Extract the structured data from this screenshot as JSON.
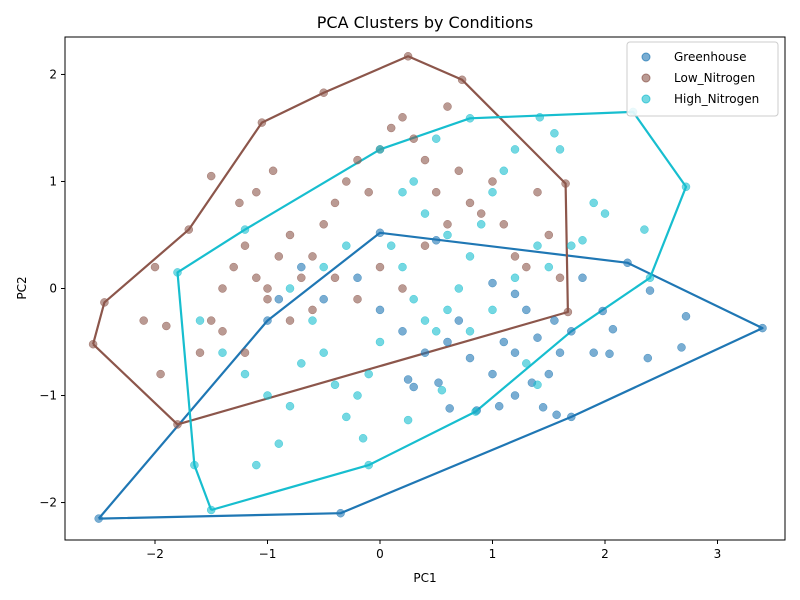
{
  "chart_data": {
    "type": "scatter",
    "title": "PCA Clusters by Conditions",
    "xlabel": "PC1",
    "ylabel": "PC2",
    "xlim": [
      -2.8,
      3.6
    ],
    "ylim": [
      -2.35,
      2.35
    ],
    "xticks": [
      -2,
      -1,
      0,
      1,
      2,
      3
    ],
    "yticks": [
      -2,
      -1,
      0,
      1,
      2
    ],
    "grid": false,
    "legend_position": "top-right",
    "series": [
      {
        "name": "Greenhouse",
        "color": "#1f77b4",
        "hull": [
          [
            -2.5,
            -2.15
          ],
          [
            -0.35,
            -2.1
          ],
          [
            1.7,
            -1.2
          ],
          [
            3.4,
            -0.37
          ],
          [
            2.2,
            0.24
          ],
          [
            0.0,
            0.52
          ],
          [
            -1.0,
            -0.3
          ],
          [
            -2.5,
            -2.15
          ]
        ],
        "points": [
          [
            -2.5,
            -2.15
          ],
          [
            -0.35,
            -2.1
          ],
          [
            3.4,
            -0.37
          ],
          [
            2.72,
            -0.26
          ],
          [
            2.68,
            -0.55
          ],
          [
            2.38,
            -0.65
          ],
          [
            2.4,
            -0.02
          ],
          [
            2.2,
            0.24
          ],
          [
            2.04,
            -0.61
          ],
          [
            1.98,
            -0.21
          ],
          [
            2.07,
            -0.38
          ],
          [
            1.9,
            -0.6
          ],
          [
            1.7,
            -1.2
          ],
          [
            1.57,
            -1.18
          ],
          [
            1.45,
            -1.11
          ],
          [
            1.35,
            -0.88
          ],
          [
            1.2,
            -1.0
          ],
          [
            1.06,
            -1.1
          ],
          [
            0.86,
            -1.14
          ],
          [
            0.62,
            -1.12
          ],
          [
            0.52,
            -0.88
          ],
          [
            0.3,
            -0.92
          ],
          [
            0.25,
            -0.85
          ],
          [
            1.2,
            -0.6
          ],
          [
            1.1,
            -0.5
          ],
          [
            1.4,
            -0.46
          ],
          [
            1.3,
            -0.2
          ],
          [
            1.2,
            -0.05
          ],
          [
            1.0,
            0.05
          ],
          [
            0.7,
            -0.3
          ],
          [
            0.6,
            -0.5
          ],
          [
            0.4,
            -0.6
          ],
          [
            0.2,
            -0.4
          ],
          [
            0.0,
            -0.2
          ],
          [
            -0.2,
            0.1
          ],
          [
            -0.5,
            -0.1
          ],
          [
            -0.7,
            0.2
          ],
          [
            -0.9,
            -0.1
          ],
          [
            -1.0,
            -0.3
          ],
          [
            0.0,
            0.52
          ],
          [
            0.5,
            0.45
          ],
          [
            1.8,
            0.1
          ],
          [
            1.7,
            -0.4
          ],
          [
            1.55,
            -0.3
          ],
          [
            1.0,
            -0.8
          ],
          [
            0.8,
            -0.65
          ],
          [
            1.5,
            -0.8
          ],
          [
            1.6,
            -0.6
          ]
        ]
      },
      {
        "name": "Low_Nitrogen",
        "color": "#8c564b",
        "hull": [
          [
            -2.55,
            -0.52
          ],
          [
            -1.8,
            -1.27
          ],
          [
            1.67,
            -0.22
          ],
          [
            1.65,
            0.98
          ],
          [
            0.73,
            1.95
          ],
          [
            0.25,
            2.17
          ],
          [
            -0.5,
            1.83
          ],
          [
            -1.05,
            1.55
          ],
          [
            -1.7,
            0.55
          ],
          [
            -2.45,
            -0.13
          ],
          [
            -2.55,
            -0.52
          ]
        ],
        "points": [
          [
            -2.55,
            -0.52
          ],
          [
            -2.45,
            -0.13
          ],
          [
            -1.8,
            -1.27
          ],
          [
            -1.7,
            0.55
          ],
          [
            -1.05,
            1.55
          ],
          [
            -0.5,
            1.83
          ],
          [
            0.25,
            2.17
          ],
          [
            0.73,
            1.95
          ],
          [
            1.65,
            0.98
          ],
          [
            1.67,
            -0.22
          ],
          [
            -1.95,
            -0.8
          ],
          [
            -1.9,
            -0.35
          ],
          [
            -2.0,
            0.2
          ],
          [
            -2.1,
            -0.3
          ],
          [
            -1.6,
            -0.6
          ],
          [
            -1.5,
            -0.3
          ],
          [
            -1.4,
            0.0
          ],
          [
            -1.3,
            0.2
          ],
          [
            -1.2,
            0.4
          ],
          [
            -1.1,
            0.1
          ],
          [
            -1.0,
            -0.1
          ],
          [
            -0.9,
            0.3
          ],
          [
            -0.8,
            0.5
          ],
          [
            -0.7,
            0.1
          ],
          [
            -0.6,
            -0.2
          ],
          [
            -0.5,
            0.6
          ],
          [
            -0.4,
            0.8
          ],
          [
            -0.3,
            1.0
          ],
          [
            -0.2,
            1.2
          ],
          [
            -0.1,
            0.9
          ],
          [
            0.0,
            1.3
          ],
          [
            0.1,
            1.5
          ],
          [
            0.2,
            1.6
          ],
          [
            0.3,
            1.4
          ],
          [
            0.4,
            1.2
          ],
          [
            0.5,
            0.9
          ],
          [
            0.6,
            1.7
          ],
          [
            0.7,
            1.1
          ],
          [
            0.8,
            0.8
          ],
          [
            0.9,
            0.7
          ],
          [
            1.0,
            1.0
          ],
          [
            1.1,
            0.6
          ],
          [
            1.2,
            0.3
          ],
          [
            1.3,
            0.2
          ],
          [
            1.4,
            0.9
          ],
          [
            1.5,
            0.5
          ],
          [
            1.6,
            0.1
          ],
          [
            -1.4,
            -0.4
          ],
          [
            -1.2,
            -0.6
          ],
          [
            -1.0,
            0.0
          ],
          [
            -0.8,
            -0.3
          ],
          [
            -0.6,
            0.3
          ],
          [
            -0.4,
            0.1
          ],
          [
            -0.2,
            -0.1
          ],
          [
            0.0,
            0.2
          ],
          [
            0.2,
            0.0
          ],
          [
            0.4,
            0.4
          ],
          [
            0.6,
            0.6
          ],
          [
            -1.5,
            1.05
          ],
          [
            -1.25,
            0.8
          ],
          [
            -1.1,
            0.9
          ],
          [
            -0.95,
            1.1
          ]
        ]
      },
      {
        "name": "High_Nitrogen",
        "color": "#17becf",
        "hull": [
          [
            -1.5,
            -2.07
          ],
          [
            -1.65,
            -1.65
          ],
          [
            -1.8,
            0.15
          ],
          [
            -1.2,
            0.55
          ],
          [
            0.0,
            1.3
          ],
          [
            0.8,
            1.59
          ],
          [
            2.25,
            1.65
          ],
          [
            2.72,
            0.95
          ],
          [
            2.4,
            0.1
          ],
          [
            1.7,
            -0.4
          ],
          [
            0.85,
            -1.15
          ],
          [
            -0.1,
            -1.65
          ],
          [
            -1.5,
            -2.07
          ]
        ],
        "points": [
          [
            -1.5,
            -2.07
          ],
          [
            -1.65,
            -1.65
          ],
          [
            -1.1,
            -1.65
          ],
          [
            -0.1,
            -1.65
          ],
          [
            -1.8,
            0.15
          ],
          [
            -1.2,
            0.55
          ],
          [
            0.0,
            1.3
          ],
          [
            0.8,
            1.59
          ],
          [
            1.42,
            1.6
          ],
          [
            2.25,
            1.65
          ],
          [
            2.72,
            0.95
          ],
          [
            2.4,
            0.1
          ],
          [
            2.35,
            0.55
          ],
          [
            1.55,
            1.45
          ],
          [
            1.6,
            1.3
          ],
          [
            2.0,
            0.7
          ],
          [
            1.9,
            0.8
          ],
          [
            1.7,
            0.4
          ],
          [
            1.8,
            0.45
          ],
          [
            1.2,
            1.3
          ],
          [
            1.1,
            1.1
          ],
          [
            1.0,
            0.9
          ],
          [
            0.9,
            0.6
          ],
          [
            0.8,
            0.3
          ],
          [
            0.7,
            0.0
          ],
          [
            0.6,
            -0.2
          ],
          [
            0.5,
            -0.4
          ],
          [
            0.4,
            -0.3
          ],
          [
            0.3,
            -0.1
          ],
          [
            0.2,
            0.2
          ],
          [
            0.1,
            0.4
          ],
          [
            0.0,
            -0.5
          ],
          [
            -0.1,
            -0.8
          ],
          [
            -0.2,
            -1.0
          ],
          [
            -0.3,
            -1.2
          ],
          [
            -0.4,
            -0.9
          ],
          [
            -0.5,
            -0.6
          ],
          [
            -0.6,
            -0.3
          ],
          [
            -0.7,
            -0.7
          ],
          [
            -0.8,
            -1.1
          ],
          [
            -0.9,
            -1.45
          ],
          [
            -1.0,
            -1.0
          ],
          [
            -1.2,
            -0.8
          ],
          [
            -1.4,
            -0.6
          ],
          [
            -1.6,
            -0.3
          ],
          [
            0.85,
            -1.15
          ],
          [
            0.55,
            -0.95
          ],
          [
            0.25,
            -1.23
          ],
          [
            -0.15,
            -1.4
          ],
          [
            1.4,
            -0.9
          ],
          [
            1.3,
            -0.7
          ],
          [
            1.5,
            0.2
          ],
          [
            1.4,
            0.4
          ],
          [
            1.2,
            0.1
          ],
          [
            1.0,
            -0.2
          ],
          [
            0.8,
            -0.4
          ],
          [
            0.6,
            0.5
          ],
          [
            0.4,
            0.7
          ],
          [
            0.2,
            0.9
          ],
          [
            -0.3,
            0.4
          ],
          [
            -0.5,
            0.2
          ],
          [
            -0.8,
            0.0
          ],
          [
            0.5,
            1.4
          ],
          [
            0.3,
            1.0
          ]
        ]
      }
    ]
  }
}
